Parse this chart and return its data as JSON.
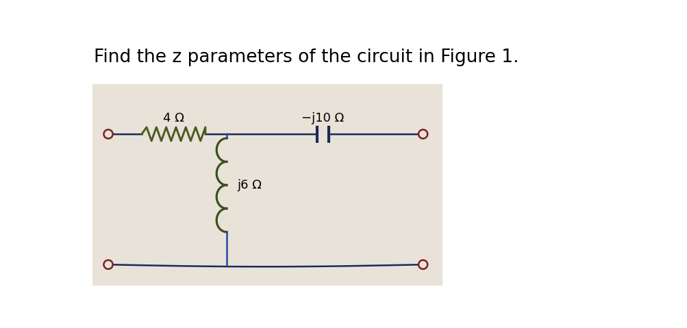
{
  "title": "Find the z parameters of the circuit in Figure 1.",
  "title_fontsize": 19,
  "bg_color": "#ffffff",
  "circuit_bg": "#e8e2d8",
  "label_4ohm": "4 Ω",
  "label_neg_j10": "−j10 Ω",
  "label_j6": "j6 Ω",
  "wire_color": "#1a2a5a",
  "resistor_color": "#4a5a20",
  "inductor_color": "#3a5020",
  "capacitor_color": "#1a2a5a",
  "port_circle_color": "#7a2020",
  "vertical_wire_color": "#2244aa",
  "label_fontsize": 13
}
